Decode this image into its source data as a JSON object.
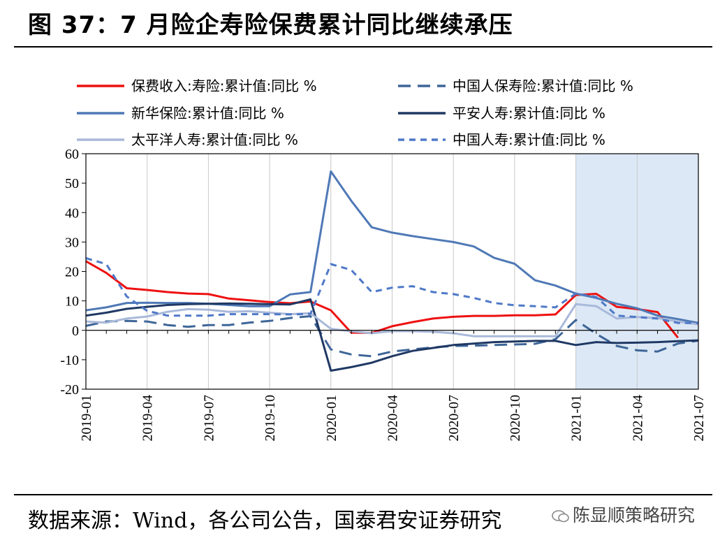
{
  "header": {
    "title": "图 37：7 月险企寿险保费累计同比继续承压"
  },
  "footer": {
    "source": "数据来源：Wind，各公司公告，国泰君安证券研究"
  },
  "watermark": {
    "text": "陈显顺策略研究",
    "icon": "wechat-icon"
  },
  "chart_data": {
    "type": "line",
    "x": [
      "2019-01",
      "2019-02",
      "2019-03",
      "2019-04",
      "2019-05",
      "2019-06",
      "2019-07",
      "2019-08",
      "2019-09",
      "2019-10",
      "2019-11",
      "2019-12",
      "2020-01",
      "2020-02",
      "2020-03",
      "2020-04",
      "2020-05",
      "2020-06",
      "2020-07",
      "2020-08",
      "2020-09",
      "2020-10",
      "2020-11",
      "2020-12",
      "2021-01",
      "2021-02",
      "2021-03",
      "2021-04",
      "2021-05",
      "2021-06",
      "2021-07"
    ],
    "x_tick_labels": [
      "2019-01",
      "2019-04",
      "2019-07",
      "2019-10",
      "2020-01",
      "2020-04",
      "2020-07",
      "2020-10",
      "2021-01",
      "2021-04",
      "2021-07"
    ],
    "ylim": [
      -20,
      60
    ],
    "y_ticks": [
      60,
      50,
      40,
      30,
      20,
      10,
      0,
      -10,
      -20
    ],
    "y_tick_labels": [
      "60",
      "50",
      "40",
      "30",
      "20",
      "10",
      "0",
      "-10",
      "-20"
    ],
    "shaded_region": [
      "2021-01",
      "2021-07"
    ],
    "legend_placement": "top",
    "series": [
      {
        "name": "保费收入:寿险:累计值:同比 %",
        "color": "#ee1111",
        "dash": "solid",
        "values": [
          23.5,
          19.5,
          14.3,
          13.7,
          13.0,
          12.5,
          12.3,
          10.8,
          10.2,
          9.6,
          9.2,
          9.8,
          6.8,
          -0.8,
          -0.9,
          1.4,
          2.8,
          4.0,
          4.6,
          4.9,
          4.9,
          5.1,
          5.1,
          5.4,
          12.0,
          12.4,
          8.0,
          7.2,
          6.2,
          -2.5,
          null
        ]
      },
      {
        "name": "中国人保寿险:累计值:同比 %",
        "color": "#3e6698",
        "dash": "long",
        "values": [
          1.5,
          3.0,
          3.2,
          3.0,
          1.8,
          1.2,
          1.8,
          1.8,
          2.6,
          3.2,
          4.2,
          4.8,
          -6.5,
          -8.2,
          -8.8,
          -7.2,
          -6.5,
          -5.8,
          -5.3,
          -5.2,
          -5.0,
          -4.8,
          -4.6,
          -3.0,
          3.5,
          -1.2,
          -5.3,
          -6.8,
          -7.2,
          -4.5,
          -3.5
        ]
      },
      {
        "name": "新华保险:累计值:同比 %",
        "color": "#4f79b6",
        "dash": "solid",
        "values": [
          6.8,
          7.8,
          9.3,
          9.4,
          9.3,
          9.3,
          9.0,
          8.6,
          8.2,
          8.2,
          12.2,
          13.0,
          54.0,
          44.0,
          35.0,
          33.2,
          32.0,
          31.0,
          30.0,
          28.5,
          24.6,
          22.6,
          17.0,
          15.2,
          12.5,
          11.0,
          9.0,
          7.5,
          5.0,
          3.8,
          2.5
        ]
      },
      {
        "name": "平安人寿:累计值:同比 %",
        "color": "#1f3864",
        "dash": "solid",
        "values": [
          5.0,
          6.0,
          7.3,
          8.0,
          8.6,
          8.9,
          9.0,
          9.1,
          9.0,
          8.9,
          8.8,
          10.5,
          -13.7,
          -12.5,
          -11.0,
          -8.8,
          -7.0,
          -6.0,
          -5.0,
          -4.5,
          -4.0,
          -3.8,
          -3.6,
          -3.6,
          -5.0,
          -4.0,
          -4.3,
          -4.2,
          -4.0,
          -3.7,
          -3.4
        ]
      },
      {
        "name": "太平洋人寿:累计值:同比 %",
        "color": "#a9b9da",
        "dash": "solid",
        "values": [
          3.0,
          2.6,
          4.0,
          4.7,
          6.3,
          7.2,
          7.0,
          6.3,
          6.5,
          6.0,
          5.5,
          5.8,
          0.5,
          -0.3,
          -1.0,
          -0.3,
          -0.3,
          -0.5,
          -1.0,
          -2.0,
          -2.0,
          -2.0,
          -2.0,
          -2.0,
          8.9,
          8.2,
          4.0,
          4.5,
          4.2,
          3.0,
          2.0
        ]
      },
      {
        "name": "中国人寿:累计值:同比 %",
        "color": "#4f79c8",
        "dash": "short",
        "values": [
          24.5,
          22.5,
          11.5,
          6.6,
          5.0,
          5.0,
          5.0,
          5.5,
          5.5,
          5.5,
          5.4,
          5.6,
          22.5,
          20.5,
          13.0,
          14.5,
          15.0,
          13.0,
          12.3,
          11.0,
          9.3,
          8.5,
          8.2,
          7.8,
          12.5,
          11.3,
          5.0,
          4.5,
          4.0,
          2.5,
          2.5
        ]
      }
    ]
  }
}
